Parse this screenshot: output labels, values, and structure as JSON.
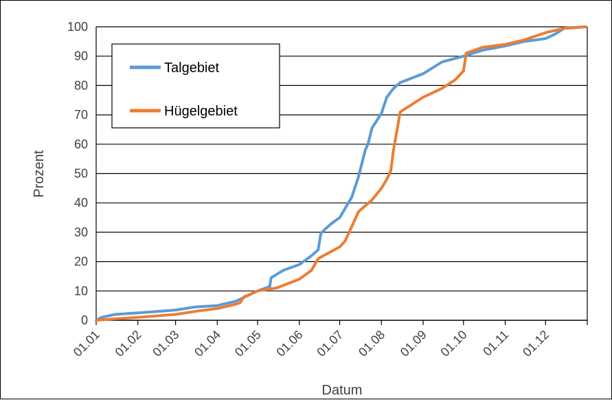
{
  "chart_data": {
    "type": "line",
    "title": "",
    "xlabel": "Datum",
    "ylabel": "Prozent",
    "ylim": [
      0,
      100
    ],
    "yticks": [
      0,
      10,
      20,
      30,
      40,
      50,
      60,
      70,
      80,
      90,
      100
    ],
    "xticks": [
      "01.01",
      "01.02",
      "01.03",
      "01.04",
      "01.05",
      "01.06",
      "01.07",
      "01.08",
      "01.09",
      "01.10",
      "01.11",
      "01.12"
    ],
    "grid": "horizontal",
    "legend_position": "top-left",
    "series": [
      {
        "name": "Talgebiet",
        "color": "#5B9BD5",
        "x": [
          "01.01",
          "05.01",
          "15.01",
          "01.02",
          "15.02",
          "01.03",
          "15.03",
          "01.04",
          "15.04",
          "01.05",
          "10.05",
          "11.05",
          "20.05",
          "01.06",
          "10.06",
          "15.06",
          "17.06",
          "20.06",
          "25.06",
          "01.07",
          "10.07",
          "15.07",
          "20.07",
          "22.07",
          "25.07",
          "01.08",
          "05.08",
          "10.08",
          "15.08",
          "01.09",
          "15.09",
          "01.10",
          "15.10",
          "01.11",
          "15.11",
          "01.12",
          "08.12",
          "15.12",
          "31.12"
        ],
        "values": [
          0,
          1,
          2,
          2.5,
          3,
          3.5,
          4.5,
          5,
          6.5,
          10,
          11.5,
          14.5,
          17,
          19,
          22,
          24,
          29.5,
          31,
          33,
          35,
          42,
          49,
          58,
          60,
          65.5,
          70.5,
          76,
          79,
          81,
          84,
          88,
          90,
          92,
          93.5,
          95,
          96,
          97.5,
          99.5,
          100
        ]
      },
      {
        "name": "Hügelgebiet",
        "color": "#ED7D31",
        "x": [
          "01.01",
          "15.01",
          "01.02",
          "15.02",
          "01.03",
          "15.03",
          "01.04",
          "15.04",
          "18.04",
          "21.04",
          "01.05",
          "15.05",
          "01.06",
          "10.06",
          "15.06",
          "01.07",
          "05.07",
          "08.07",
          "15.07",
          "25.07",
          "01.08",
          "05.08",
          "08.08",
          "10.08",
          "15.08",
          "01.09",
          "15.09",
          "25.09",
          "01.10",
          "03.10",
          "15.10",
          "01.11",
          "15.11",
          "01.12",
          "15.12",
          "31.12"
        ],
        "values": [
          0,
          0.5,
          1,
          1.5,
          2,
          3,
          4,
          5.5,
          6,
          8,
          10,
          11,
          14,
          17,
          21,
          25,
          27,
          30,
          37,
          41,
          45,
          48,
          51,
          58,
          71,
          76,
          79,
          82,
          85,
          91,
          93,
          94,
          95.5,
          98,
          99.5,
          100
        ]
      }
    ]
  }
}
